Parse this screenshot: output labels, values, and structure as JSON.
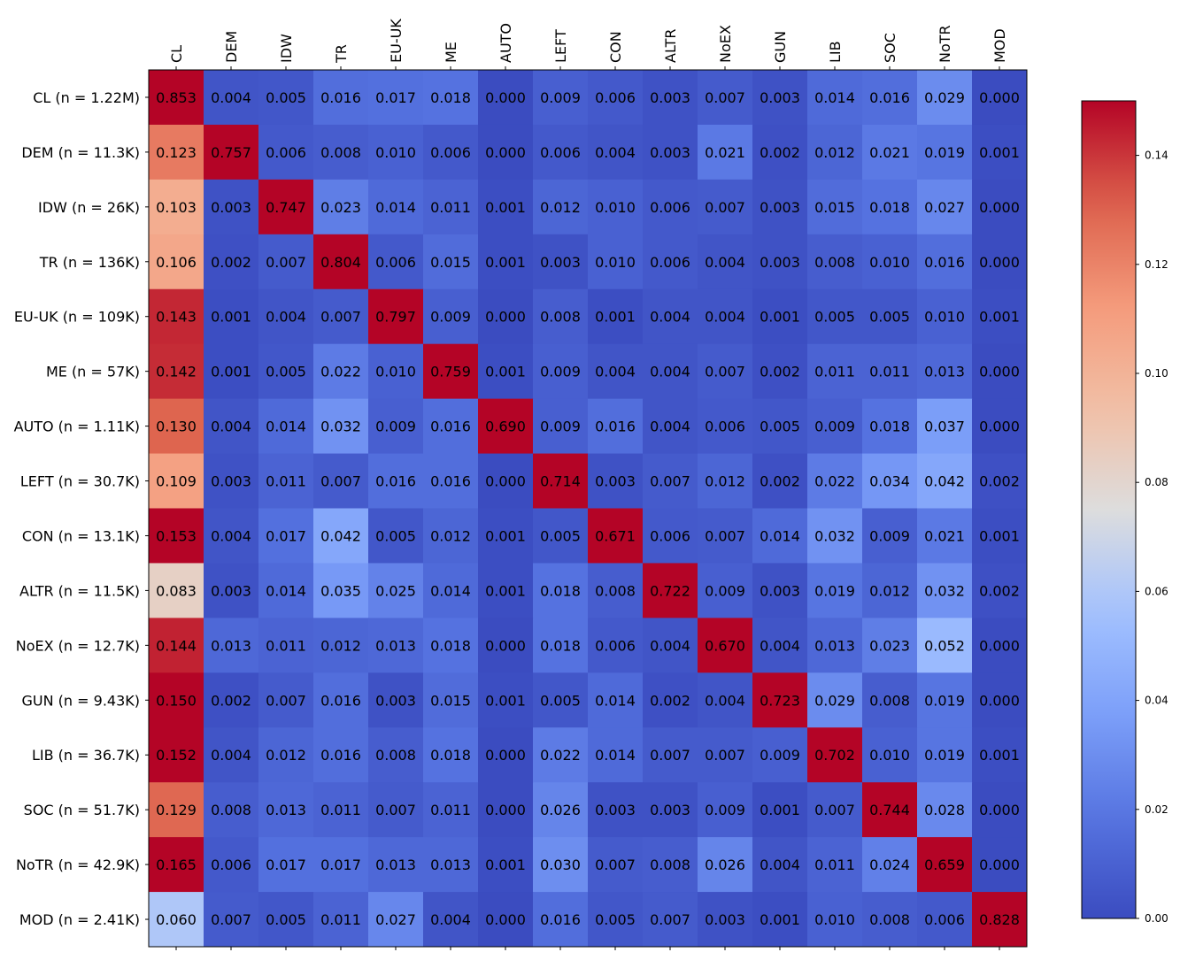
{
  "chart_data": {
    "type": "heatmap",
    "title": "",
    "xlabel": "",
    "ylabel": "",
    "columns": [
      "CL",
      "DEM",
      "IDW",
      "TR",
      "EU-UK",
      "ME",
      "AUTO",
      "LEFT",
      "CON",
      "ALTR",
      "NoEX",
      "GUN",
      "LIB",
      "SOC",
      "NoTR",
      "MOD"
    ],
    "rows": [
      "CL (n = 1.22M)",
      "DEM (n = 11.3K)",
      "IDW (n = 26K)",
      "TR (n = 136K)",
      "EU-UK (n = 109K)",
      "ME (n = 57K)",
      "AUTO (n = 1.11K)",
      "LEFT (n = 30.7K)",
      "CON (n = 13.1K)",
      "ALTR (n = 11.5K)",
      "NoEX (n = 12.7K)",
      "GUN (n = 9.43K)",
      "LIB (n = 36.7K)",
      "SOC (n = 51.7K)",
      "NoTR (n = 42.9K)",
      "MOD (n = 2.41K)"
    ],
    "values": [
      [
        "0.853",
        "0.004",
        "0.005",
        "0.016",
        "0.017",
        "0.018",
        "0.000",
        "0.009",
        "0.006",
        "0.003",
        "0.007",
        "0.003",
        "0.014",
        "0.016",
        "0.029",
        "0.000"
      ],
      [
        "0.123",
        "0.757",
        "0.006",
        "0.008",
        "0.010",
        "0.006",
        "0.000",
        "0.006",
        "0.004",
        "0.003",
        "0.021",
        "0.002",
        "0.012",
        "0.021",
        "0.019",
        "0.001"
      ],
      [
        "0.103",
        "0.003",
        "0.747",
        "0.023",
        "0.014",
        "0.011",
        "0.001",
        "0.012",
        "0.010",
        "0.006",
        "0.007",
        "0.003",
        "0.015",
        "0.018",
        "0.027",
        "0.000"
      ],
      [
        "0.106",
        "0.002",
        "0.007",
        "0.804",
        "0.006",
        "0.015",
        "0.001",
        "0.003",
        "0.010",
        "0.006",
        "0.004",
        "0.003",
        "0.008",
        "0.010",
        "0.016",
        "0.000"
      ],
      [
        "0.143",
        "0.001",
        "0.004",
        "0.007",
        "0.797",
        "0.009",
        "0.000",
        "0.008",
        "0.001",
        "0.004",
        "0.004",
        "0.001",
        "0.005",
        "0.005",
        "0.010",
        "0.001"
      ],
      [
        "0.142",
        "0.001",
        "0.005",
        "0.022",
        "0.010",
        "0.759",
        "0.001",
        "0.009",
        "0.004",
        "0.004",
        "0.007",
        "0.002",
        "0.011",
        "0.011",
        "0.013",
        "0.000"
      ],
      [
        "0.130",
        "0.004",
        "0.014",
        "0.032",
        "0.009",
        "0.016",
        "0.690",
        "0.009",
        "0.016",
        "0.004",
        "0.006",
        "0.005",
        "0.009",
        "0.018",
        "0.037",
        "0.000"
      ],
      [
        "0.109",
        "0.003",
        "0.011",
        "0.007",
        "0.016",
        "0.016",
        "0.000",
        "0.714",
        "0.003",
        "0.007",
        "0.012",
        "0.002",
        "0.022",
        "0.034",
        "0.042",
        "0.002"
      ],
      [
        "0.153",
        "0.004",
        "0.017",
        "0.042",
        "0.005",
        "0.012",
        "0.001",
        "0.005",
        "0.671",
        "0.006",
        "0.007",
        "0.014",
        "0.032",
        "0.009",
        "0.021",
        "0.001"
      ],
      [
        "0.083",
        "0.003",
        "0.014",
        "0.035",
        "0.025",
        "0.014",
        "0.001",
        "0.018",
        "0.008",
        "0.722",
        "0.009",
        "0.003",
        "0.019",
        "0.012",
        "0.032",
        "0.002"
      ],
      [
        "0.144",
        "0.013",
        "0.011",
        "0.012",
        "0.013",
        "0.018",
        "0.000",
        "0.018",
        "0.006",
        "0.004",
        "0.670",
        "0.004",
        "0.013",
        "0.023",
        "0.052",
        "0.000"
      ],
      [
        "0.150",
        "0.002",
        "0.007",
        "0.016",
        "0.003",
        "0.015",
        "0.001",
        "0.005",
        "0.014",
        "0.002",
        "0.004",
        "0.723",
        "0.029",
        "0.008",
        "0.019",
        "0.000"
      ],
      [
        "0.152",
        "0.004",
        "0.012",
        "0.016",
        "0.008",
        "0.018",
        "0.000",
        "0.022",
        "0.014",
        "0.007",
        "0.007",
        "0.009",
        "0.702",
        "0.010",
        "0.019",
        "0.001"
      ],
      [
        "0.129",
        "0.008",
        "0.013",
        "0.011",
        "0.007",
        "0.011",
        "0.000",
        "0.026",
        "0.003",
        "0.003",
        "0.009",
        "0.001",
        "0.007",
        "0.744",
        "0.028",
        "0.000"
      ],
      [
        "0.165",
        "0.006",
        "0.017",
        "0.017",
        "0.013",
        "0.013",
        "0.001",
        "0.030",
        "0.007",
        "0.008",
        "0.026",
        "0.004",
        "0.011",
        "0.024",
        "0.659",
        "0.000"
      ],
      [
        "0.060",
        "0.007",
        "0.005",
        "0.011",
        "0.027",
        "0.004",
        "0.000",
        "0.016",
        "0.005",
        "0.007",
        "0.003",
        "0.001",
        "0.010",
        "0.008",
        "0.006",
        "0.828"
      ]
    ],
    "color_scale": {
      "colormap": "coolwarm",
      "vmin": 0.0,
      "vmax": 0.15,
      "ticks": [
        "0.00",
        "0.02",
        "0.04",
        "0.06",
        "0.08",
        "0.10",
        "0.12",
        "0.14"
      ]
    }
  }
}
